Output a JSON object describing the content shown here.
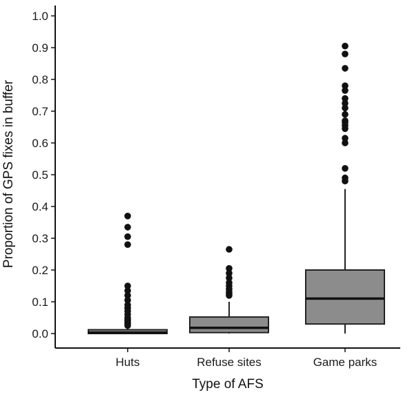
{
  "chart_data": {
    "type": "box",
    "xlabel": "Type of AFS",
    "ylabel": "Proportion of GPS fixes in buffer",
    "ylim": [
      0,
      1.0
    ],
    "yticks": [
      "0.0",
      "0.1",
      "0.2",
      "0.3",
      "0.4",
      "0.5",
      "0.6",
      "0.7",
      "0.8",
      "0.9",
      "1.0"
    ],
    "categories": [
      "Huts",
      "Refuse sites",
      "Game parks"
    ],
    "grid": false,
    "box_fill": "#8c8c8c",
    "box_stroke": "#222222",
    "point_color": "#111111",
    "boxes": [
      {
        "category": "Huts",
        "whisker_low": 0.0,
        "q1": 0.0,
        "median": 0.003,
        "q3": 0.012,
        "whisker_high": 0.015,
        "outliers": [
          0.37,
          0.335,
          0.305,
          0.28,
          0.15,
          0.135,
          0.12,
          0.105,
          0.09,
          0.08,
          0.07,
          0.06,
          0.05,
          0.045,
          0.04,
          0.035,
          0.03,
          0.025
        ]
      },
      {
        "category": "Refuse sites",
        "whisker_low": 0.0,
        "q1": 0.003,
        "median": 0.018,
        "q3": 0.052,
        "whisker_high": 0.1,
        "outliers": [
          0.265,
          0.205,
          0.19,
          0.175,
          0.16,
          0.15,
          0.14,
          0.13,
          0.125,
          0.12
        ]
      },
      {
        "category": "Game parks",
        "whisker_low": 0.0,
        "q1": 0.03,
        "median": 0.11,
        "q3": 0.2,
        "whisker_high": 0.455,
        "outliers": [
          0.905,
          0.88,
          0.835,
          0.78,
          0.765,
          0.74,
          0.725,
          0.71,
          0.69,
          0.67,
          0.665,
          0.655,
          0.645,
          0.615,
          0.6,
          0.52,
          0.49,
          0.48
        ]
      }
    ]
  }
}
